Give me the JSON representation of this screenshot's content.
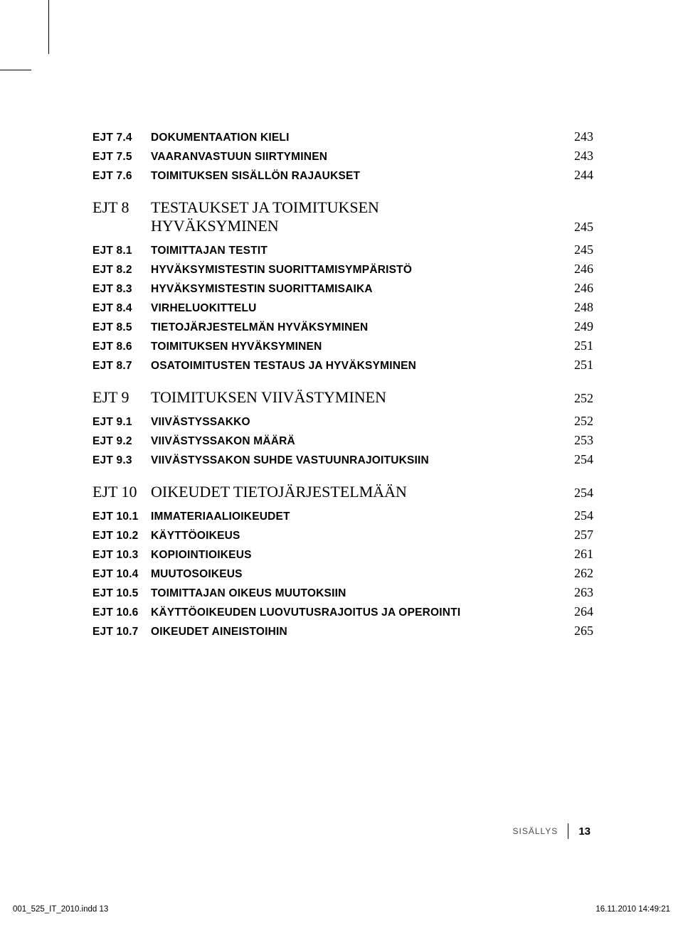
{
  "toc": {
    "groups": [
      {
        "rows": [
          {
            "code": "EJT 7.4",
            "title": "DOKUMENTAATION KIELI",
            "page": "243"
          },
          {
            "code": "EJT 7.5",
            "title": "VAARANVASTUUN SIIRTYMINEN",
            "page": "243"
          },
          {
            "code": "EJT 7.6",
            "title": "TOIMITUKSEN SISÄLLÖN RAJAUKSET",
            "page": "244"
          }
        ]
      },
      {
        "section": {
          "code": "EJT 8",
          "title1": "TESTAUKSET JA TOIMITUKSEN",
          "title2": "HYVÄKSYMINEN",
          "page": "245"
        },
        "rows": [
          {
            "code": "EJT 8.1",
            "title": "TOIMITTAJAN TESTIT",
            "page": "245"
          },
          {
            "code": "EJT 8.2",
            "title": "HYVÄKSYMISTESTIN SUORITTAMISYMPÄRISTÖ",
            "page": "246"
          },
          {
            "code": "EJT 8.3",
            "title": "HYVÄKSYMISTESTIN SUORITTAMISAIKA",
            "page": "246"
          },
          {
            "code": "EJT 8.4",
            "title": "VIRHELUOKITTELU",
            "page": "248"
          },
          {
            "code": "EJT 8.5",
            "title": "TIETOJÄRJESTELMÄN HYVÄKSYMINEN",
            "page": "249"
          },
          {
            "code": "EJT 8.6",
            "title": "TOIMITUKSEN HYVÄKSYMINEN",
            "page": "251"
          },
          {
            "code": "EJT 8.7",
            "title": "OSATOIMITUSTEN TESTAUS JA HYVÄKSYMINEN",
            "page": "251"
          }
        ]
      },
      {
        "section": {
          "code": "EJT 9",
          "title": "TOIMITUKSEN VIIVÄSTYMINEN",
          "page": "252"
        },
        "rows": [
          {
            "code": "EJT 9.1",
            "title": "VIIVÄSTYSSAKKO",
            "page": "252"
          },
          {
            "code": "EJT 9.2",
            "title": "VIIVÄSTYSSAKON MÄÄRÄ",
            "page": "253"
          },
          {
            "code": "EJT 9.3",
            "title": "VIIVÄSTYSSAKON SUHDE VASTUUNRAJOITUKSIIN",
            "page": "254"
          }
        ]
      },
      {
        "section": {
          "code": "EJT 10",
          "title": "OIKEUDET TIETOJÄRJESTELMÄÄN",
          "page": "254"
        },
        "rows": [
          {
            "code": "EJT 10.1",
            "title": "IMMATERIAALIOIKEUDET",
            "page": "254"
          },
          {
            "code": "EJT 10.2",
            "title": "KÄYTTÖOIKEUS",
            "page": "257"
          },
          {
            "code": "EJT 10.3",
            "title": "KOPIOINTIOIKEUS",
            "page": "261"
          },
          {
            "code": "EJT 10.4",
            "title": "MUUTOSOIKEUS",
            "page": "262"
          },
          {
            "code": "EJT 10.5",
            "title": "TOIMITTAJAN OIKEUS MUUTOKSIIN",
            "page": "263"
          },
          {
            "code": "EJT 10.6",
            "title": "KÄYTTÖOIKEUDEN LUOVUTUSRAJOITUS JA OPEROINTI",
            "page": "264"
          },
          {
            "code": "EJT 10.7",
            "title": "OIKEUDET AINEISTOIHIN",
            "page": "265"
          }
        ]
      }
    ]
  },
  "footer": {
    "label": "SISÄLLYS",
    "page": "13"
  },
  "indd": {
    "file": "001_525_IT_2010.indd   13",
    "timestamp": "16.11.2010   14:49:21"
  },
  "style": {
    "text_color": "#000000",
    "bg_color": "#ffffff",
    "sub_font": "Arial",
    "section_font": "Georgia",
    "page_font": "Georgia",
    "sub_fontsize": 15.5,
    "section_fontsize": 22,
    "page_fontsize": 18,
    "footer_label_fontsize": 12,
    "footer_num_fontsize": 15,
    "indd_fontsize": 11.5
  }
}
